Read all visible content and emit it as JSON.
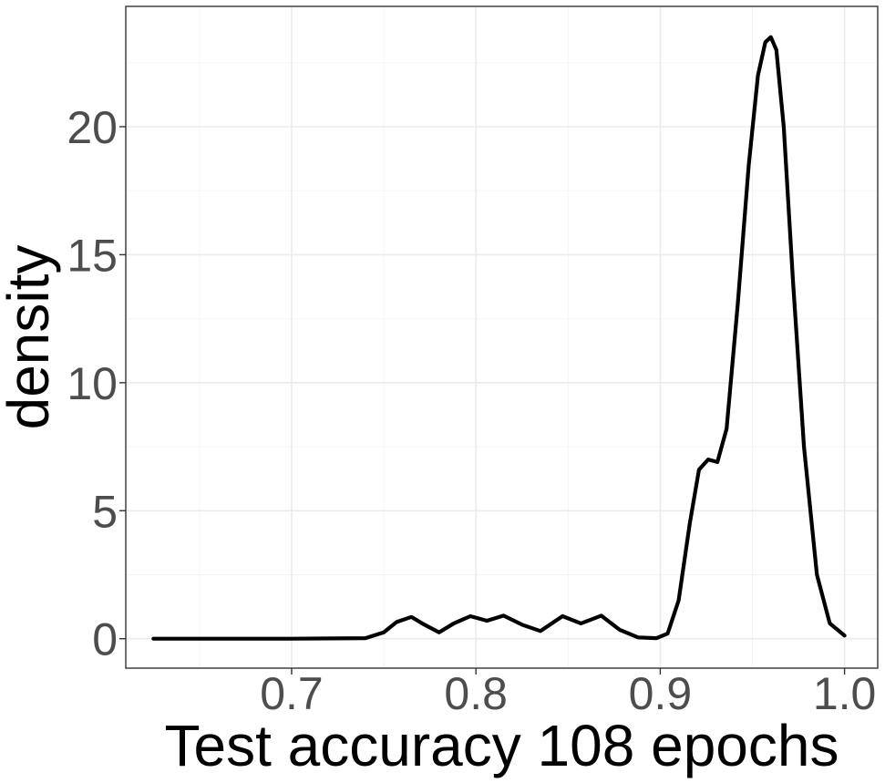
{
  "chart_data": {
    "type": "line",
    "title": "",
    "xlabel": "Test accuracy 108 epochs",
    "ylabel": "density",
    "xlim": [
      0.61,
      1.018
    ],
    "ylim": [
      -1.15,
      24.7
    ],
    "x_ticks": [
      0.7,
      0.8,
      0.9,
      1.0
    ],
    "x_tick_labels": [
      "0.7",
      "0.8",
      "0.9",
      "1.0"
    ],
    "y_ticks": [
      0,
      5,
      10,
      15,
      20
    ],
    "y_tick_labels": [
      "0",
      "5",
      "10",
      "15",
      "20"
    ],
    "x_minor_ticks": [
      0.65,
      0.75,
      0.85,
      0.95
    ],
    "y_minor_ticks": [
      2.5,
      7.5,
      12.5,
      17.5,
      22.5
    ],
    "grid": true,
    "legend": "none",
    "series": [
      {
        "color": "#000000",
        "x": [
          0.625,
          0.7,
          0.74,
          0.75,
          0.757,
          0.765,
          0.772,
          0.78,
          0.788,
          0.797,
          0.806,
          0.815,
          0.825,
          0.835,
          0.847,
          0.857,
          0.868,
          0.878,
          0.888,
          0.898,
          0.904,
          0.91,
          0.916,
          0.921,
          0.926,
          0.931,
          0.936,
          0.942,
          0.948,
          0.953,
          0.957,
          0.96,
          0.963,
          0.967,
          0.972,
          0.978,
          0.985,
          0.992,
          1.0
        ],
        "y": [
          0,
          0,
          0.02,
          0.25,
          0.65,
          0.85,
          0.55,
          0.25,
          0.6,
          0.88,
          0.7,
          0.9,
          0.55,
          0.3,
          0.88,
          0.6,
          0.9,
          0.35,
          0.05,
          0.02,
          0.2,
          1.5,
          4.5,
          6.6,
          7.0,
          6.9,
          8.2,
          13.0,
          18.5,
          22.0,
          23.3,
          23.5,
          23.0,
          20.0,
          14.0,
          7.5,
          2.5,
          0.6,
          0.12
        ]
      }
    ]
  }
}
